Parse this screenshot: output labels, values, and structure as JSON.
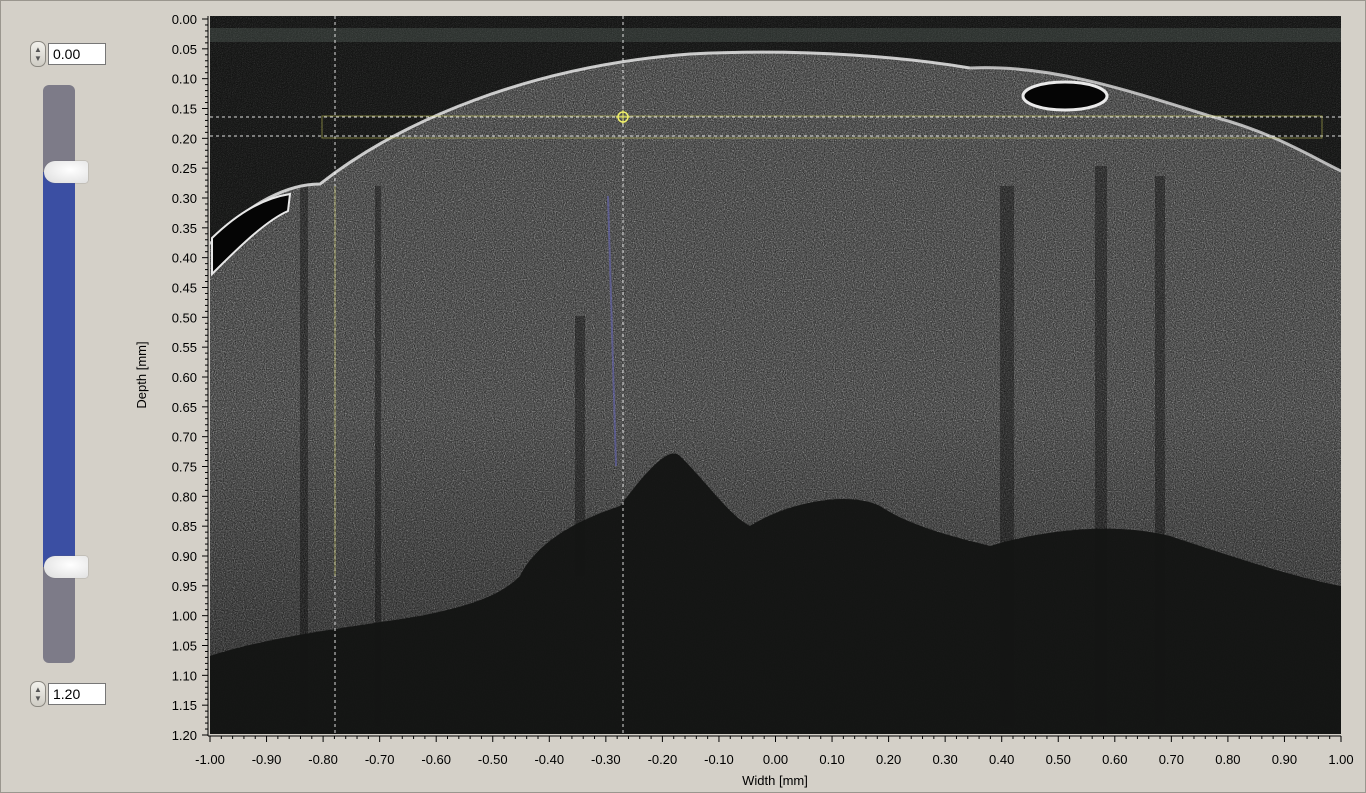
{
  "top_control": {
    "value": "0.00"
  },
  "bottom_control": {
    "value": "1.20"
  },
  "slider": {
    "min": 0.0,
    "max": 1.2,
    "upper_thumb": 0.18,
    "lower_thumb": 1.0,
    "fill_color": "#3b4fa3"
  },
  "chart_data": {
    "type": "heatmap",
    "title": "",
    "xlabel": "Width [mm]",
    "ylabel": "Depth [mm]",
    "xlim": [
      -1.0,
      1.0
    ],
    "ylim": [
      0.0,
      1.2
    ],
    "y_reversed": true,
    "x_ticks": [
      "-1.00",
      "-0.90",
      "-0.80",
      "-0.70",
      "-0.60",
      "-0.50",
      "-0.40",
      "-0.30",
      "-0.20",
      "-0.10",
      "0.00",
      "0.10",
      "0.20",
      "0.30",
      "0.40",
      "0.50",
      "0.60",
      "0.70",
      "0.80",
      "0.90",
      "1.00"
    ],
    "y_ticks": [
      "0.00",
      "0.05",
      "0.10",
      "0.15",
      "0.20",
      "0.25",
      "0.30",
      "0.35",
      "0.40",
      "0.45",
      "0.50",
      "0.55",
      "0.60",
      "0.65",
      "0.70",
      "0.75",
      "0.80",
      "0.85",
      "0.90",
      "0.95",
      "1.00",
      "1.05",
      "1.10",
      "1.15",
      "1.20"
    ],
    "cursor_lines": {
      "vertical_x": [
        -0.77,
        -0.26
      ],
      "horizontal_y": [
        0.165,
        0.195
      ]
    },
    "cursor_point": {
      "x": -0.26,
      "y": 0.165
    },
    "image": "oct-cross-section-grayscale"
  }
}
